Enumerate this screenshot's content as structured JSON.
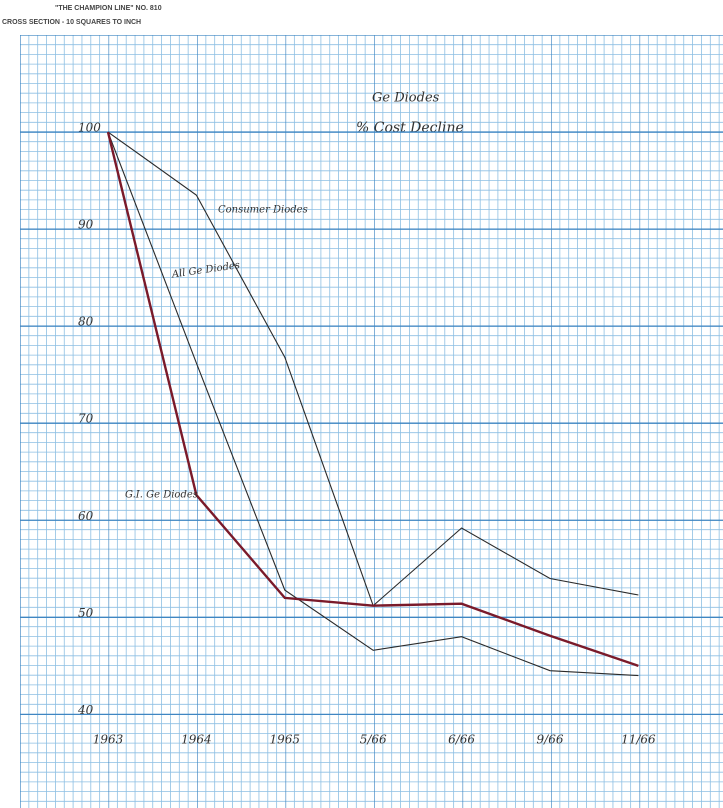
{
  "paper": {
    "brand": "\"THE CHAMPION LINE\" NO. 810",
    "ruling": "CROSS SECTION - 10 SQUARES TO INCH"
  },
  "chart_data": {
    "type": "line",
    "title": "Ge Diodes",
    "subtitle": "% Cost Decline",
    "categories": [
      "1963",
      "1964",
      "1965",
      "5/66",
      "6/66",
      "9/66",
      "11/66"
    ],
    "series": [
      {
        "name": "Consumer Diodes",
        "color": "#2a2a2a",
        "values": [
          100,
          93.5,
          76.8,
          51.2,
          59.2,
          54,
          52.3
        ]
      },
      {
        "name": "All Ge Diodes",
        "color": "#2a2a2a",
        "values": [
          100,
          76.2,
          52.8,
          46.6,
          48,
          44.5,
          44
        ]
      },
      {
        "name": "G.I. Ge Diodes",
        "color": "#7a1a2a",
        "values": [
          100,
          62.6,
          52,
          51.2,
          51.4,
          48.1,
          45
        ]
      }
    ],
    "ylim": [
      32,
      110
    ],
    "yticks": [
      40,
      50,
      60,
      70,
      80,
      90,
      100
    ],
    "grid": true
  }
}
